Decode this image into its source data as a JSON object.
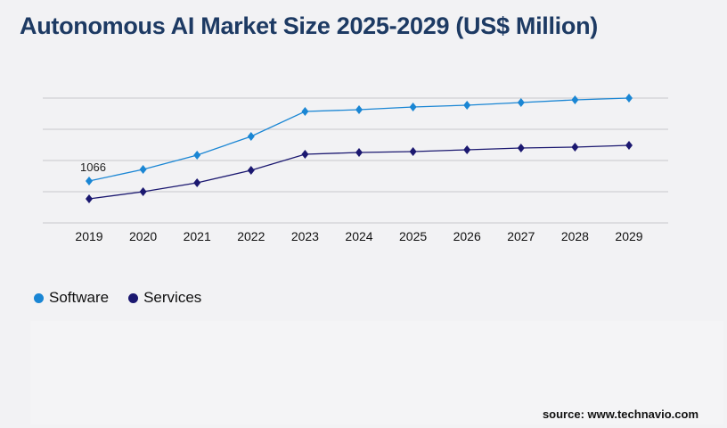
{
  "title": "Autonomous AI Market Size 2025-2029 (US$ Million)",
  "source": "source: www.technavio.com",
  "chart_data": {
    "type": "line",
    "title": "Autonomous AI Market Size 2025-2029 (US$ Million)",
    "categories": [
      "2019",
      "2020",
      "2021",
      "2022",
      "2023",
      "2024",
      "2025",
      "2026",
      "2027",
      "2028",
      "2029"
    ],
    "series": [
      {
        "name": "Software",
        "color": "#1a86d4",
        "values": [
          1066,
          1361,
          1724,
          2200,
          2835,
          2880,
          2948,
          2994,
          3062,
          3130,
          3175
        ]
      },
      {
        "name": "Services",
        "color": "#1b1870",
        "values": [
          612,
          794,
          1021,
          1338,
          1746,
          1792,
          1814,
          1860,
          1905,
          1928,
          1973
        ]
      }
    ],
    "data_labels": [
      {
        "series": "Software",
        "category": "2019",
        "text": "1066"
      }
    ],
    "ylim": [
      0,
      3175
    ],
    "grid": true,
    "y_tick_labels_shown": false,
    "legend": "bottom-left"
  }
}
